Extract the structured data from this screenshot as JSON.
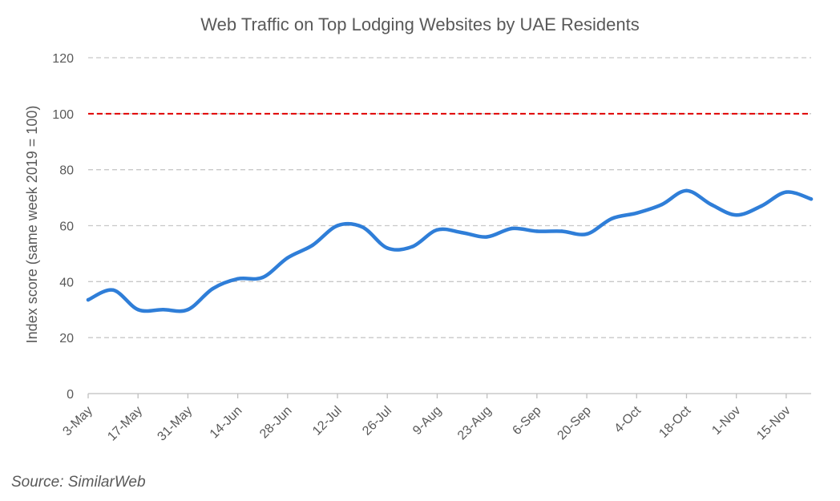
{
  "chart_data": {
    "type": "line",
    "title": "Web Traffic on Top Lodging Websites by UAE Residents",
    "xlabel": "",
    "ylabel": "Index score (same week 2019 = 100)",
    "ylim": [
      0,
      120
    ],
    "yticks": [
      0,
      20,
      40,
      60,
      80,
      100,
      120
    ],
    "x_tick_labels": [
      "3-May",
      "17-May",
      "31-May",
      "14-Jun",
      "28-Jun",
      "12-Jul",
      "26-Jul",
      "9-Aug",
      "23-Aug",
      "6-Sep",
      "20-Sep",
      "4-Oct",
      "18-Oct",
      "1-Nov",
      "15-Nov"
    ],
    "grid": true,
    "legend": "none",
    "x": [
      "3-May",
      "10-May",
      "17-May",
      "24-May",
      "31-May",
      "7-Jun",
      "14-Jun",
      "21-Jun",
      "28-Jun",
      "5-Jul",
      "12-Jul",
      "19-Jul",
      "26-Jul",
      "2-Aug",
      "9-Aug",
      "16-Aug",
      "23-Aug",
      "30-Aug",
      "6-Sep",
      "13-Sep",
      "20-Sep",
      "27-Sep",
      "4-Oct",
      "11-Oct",
      "18-Oct",
      "25-Oct",
      "1-Nov",
      "8-Nov",
      "15-Nov",
      "22-Nov"
    ],
    "series": [
      {
        "color": "#2f7ed8",
        "values": [
          33.5,
          37,
          30,
          30,
          30,
          37.5,
          41,
          41.5,
          48.5,
          53,
          60,
          59.5,
          52,
          52.5,
          58.5,
          57.5,
          56,
          59,
          58,
          58,
          57,
          62.5,
          64.5,
          67.5,
          72.5,
          67.5,
          63.8,
          67,
          72,
          69.5
        ]
      }
    ],
    "reference_lines": [
      {
        "value": 100,
        "color": "#e00000",
        "style": "dashed"
      }
    ],
    "gridline_color": "#c8c8c8"
  },
  "source": "Source: SimilarWeb"
}
